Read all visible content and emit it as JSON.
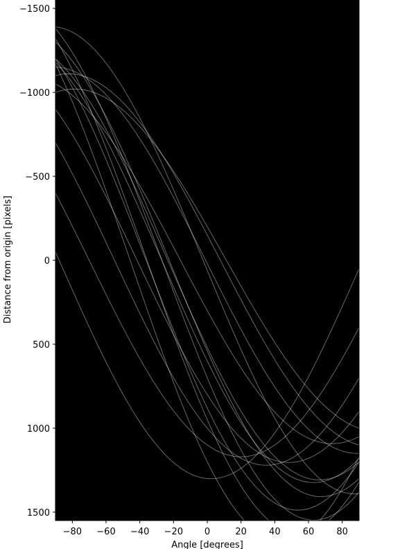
{
  "chart_data": {
    "type": "heatmap",
    "description_of_marks": "Hough transform accumulator: sinusoidal curves rho = x*cos(theta) + y*sin(theta)",
    "xlabel": "Angle [degrees]",
    "ylabel": "Distance from origin [pixels]",
    "xlim": [
      -90,
      90
    ],
    "ylim": [
      1550,
      -1550
    ],
    "x_ticks": [
      -80,
      -60,
      -40,
      -20,
      0,
      20,
      40,
      60,
      80
    ],
    "x_tick_labels": [
      "−80",
      "−60",
      "−40",
      "−20",
      "0",
      "20",
      "40",
      "60",
      "80"
    ],
    "y_ticks": [
      -1500,
      -1000,
      -500,
      0,
      500,
      1000,
      1500
    ],
    "y_tick_labels": [
      "−1500",
      "−1000",
      "−500",
      "0",
      "500",
      "1000",
      "1500"
    ],
    "background_color": "#000000",
    "curve_color": "#ffffff",
    "curves_x": [
      -150,
      20,
      300,
      520,
      700,
      880,
      1000,
      1100,
      1300,
      540,
      -200,
      600,
      800,
      950,
      1200,
      60
    ],
    "curves_y": [
      1100,
      1150,
      1050,
      1200,
      1380,
      1200,
      700,
      400,
      50,
      1300,
      1000,
      1180,
      900,
      1320,
      1170,
      1390
    ]
  }
}
